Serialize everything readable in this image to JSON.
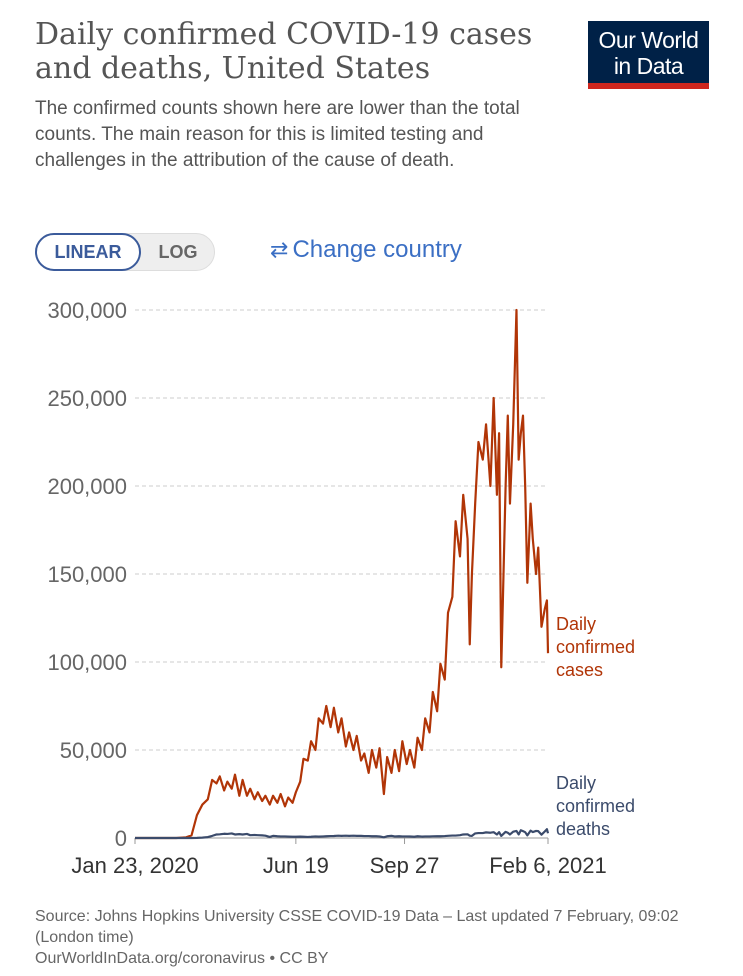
{
  "header": {
    "title": "Daily confirmed COVID-19 cases and deaths, United States",
    "subtitle": "The confirmed counts shown here are lower than the total counts. The main reason for this is limited testing and challenges in the attribution of the cause of death.",
    "logo": "Our World in Data"
  },
  "controls": {
    "linear": "LINEAR",
    "log": "LOG",
    "change_country": "Change country"
  },
  "chart_data": {
    "type": "line",
    "x": [
      "2020-01-23",
      "2020-02-15",
      "2020-03-01",
      "2020-03-10",
      "2020-03-15",
      "2020-03-20",
      "2020-03-25",
      "2020-03-30",
      "2020-04-03",
      "2020-04-07",
      "2020-04-10",
      "2020-04-14",
      "2020-04-17",
      "2020-04-21",
      "2020-04-24",
      "2020-04-28",
      "2020-05-01",
      "2020-05-05",
      "2020-05-08",
      "2020-05-12",
      "2020-05-15",
      "2020-05-19",
      "2020-05-22",
      "2020-05-26",
      "2020-05-29",
      "2020-06-02",
      "2020-06-05",
      "2020-06-09",
      "2020-06-12",
      "2020-06-16",
      "2020-06-19",
      "2020-06-23",
      "2020-06-26",
      "2020-06-30",
      "2020-07-03",
      "2020-07-07",
      "2020-07-10",
      "2020-07-14",
      "2020-07-17",
      "2020-07-21",
      "2020-07-24",
      "2020-07-28",
      "2020-07-31",
      "2020-08-04",
      "2020-08-07",
      "2020-08-11",
      "2020-08-14",
      "2020-08-18",
      "2020-08-21",
      "2020-08-25",
      "2020-08-28",
      "2020-09-01",
      "2020-09-04",
      "2020-09-08",
      "2020-09-11",
      "2020-09-15",
      "2020-09-18",
      "2020-09-22",
      "2020-09-25",
      "2020-09-29",
      "2020-10-02",
      "2020-10-06",
      "2020-10-09",
      "2020-10-13",
      "2020-10-16",
      "2020-10-20",
      "2020-10-23",
      "2020-10-27",
      "2020-10-30",
      "2020-11-03",
      "2020-11-06",
      "2020-11-10",
      "2020-11-13",
      "2020-11-17",
      "2020-11-20",
      "2020-11-24",
      "2020-11-26",
      "2020-11-28",
      "2020-12-01",
      "2020-12-04",
      "2020-12-08",
      "2020-12-11",
      "2020-12-15",
      "2020-12-18",
      "2020-12-21",
      "2020-12-23",
      "2020-12-25",
      "2020-12-29",
      "2020-12-31",
      "2021-01-02",
      "2021-01-05",
      "2021-01-08",
      "2021-01-10",
      "2021-01-12",
      "2021-01-14",
      "2021-01-16",
      "2021-01-18",
      "2021-01-21",
      "2021-01-23",
      "2021-01-26",
      "2021-01-28",
      "2021-01-31",
      "2021-02-03",
      "2021-02-05",
      "2021-02-06"
    ],
    "series": [
      {
        "name": "Daily confirmed cases",
        "color": "#b13507",
        "values": [
          0,
          0,
          10,
          400,
          1500,
          13000,
          19000,
          22000,
          33000,
          31000,
          35000,
          27000,
          32000,
          28000,
          36000,
          24000,
          33000,
          24000,
          28000,
          22000,
          26000,
          21000,
          24000,
          19000,
          24000,
          20000,
          25000,
          18000,
          23000,
          20000,
          26000,
          32000,
          45000,
          44000,
          55000,
          50000,
          68000,
          65000,
          75000,
          63000,
          74000,
          60000,
          68000,
          52000,
          60000,
          50000,
          58000,
          44000,
          48000,
          37000,
          50000,
          40000,
          51000,
          25000,
          46000,
          37000,
          50000,
          38000,
          55000,
          42000,
          50000,
          40000,
          57000,
          50000,
          68000,
          60000,
          83000,
          72000,
          99000,
          90000,
          128000,
          137000,
          180000,
          160000,
          195000,
          170000,
          110000,
          150000,
          190000,
          225000,
          215000,
          235000,
          200000,
          250000,
          195000,
          230000,
          97000,
          200000,
          240000,
          190000,
          235000,
          300000,
          215000,
          230000,
          240000,
          200000,
          145000,
          190000,
          170000,
          150000,
          165000,
          120000,
          130000,
          135000,
          105000
        ]
      },
      {
        "name": "Daily confirmed deaths",
        "color": "#3b4b6b",
        "values": [
          0,
          0,
          0,
          5,
          10,
          60,
          220,
          500,
          1200,
          2000,
          2100,
          2400,
          2300,
          2600,
          2000,
          2200,
          2000,
          2300,
          1600,
          1700,
          1600,
          1500,
          1300,
          600,
          1200,
          1000,
          900,
          900,
          800,
          700,
          700,
          800,
          700,
          600,
          700,
          900,
          800,
          900,
          1000,
          1100,
          1150,
          1300,
          1200,
          1300,
          1200,
          1300,
          1200,
          1200,
          1100,
          1100,
          1000,
          1000,
          900,
          400,
          1000,
          1200,
          900,
          1000,
          900,
          900,
          850,
          700,
          1000,
          800,
          900,
          900,
          950,
          1000,
          1000,
          1100,
          1250,
          1400,
          1400,
          1600,
          2000,
          2100,
          1300,
          1200,
          2600,
          2800,
          2800,
          3200,
          3000,
          3300,
          2000,
          3300,
          1200,
          3500,
          3000,
          2000,
          3600,
          4000,
          2000,
          4400,
          3900,
          3300,
          1500,
          4200,
          3400,
          4000,
          3900,
          1900,
          3700,
          5000,
          2700
        ]
      }
    ],
    "xlim": [
      "2020-01-23",
      "2021-02-06"
    ],
    "xticks": [
      {
        "value": "2020-01-23",
        "label": "Jan 23, 2020"
      },
      {
        "value": "2020-06-19",
        "label": "Jun 19"
      },
      {
        "value": "2020-09-27",
        "label": "Sep 27"
      },
      {
        "value": "2021-02-06",
        "label": "Feb 6, 2021"
      }
    ],
    "ylim": [
      0,
      300000
    ],
    "yticks": [
      0,
      {
        "value": 50000,
        "label": "50,000"
      },
      {
        "value": 100000,
        "label": "100,000"
      },
      {
        "value": 150000,
        "label": "150,000"
      },
      {
        "value": 200000,
        "label": "200,000"
      },
      {
        "value": 250000,
        "label": "250,000"
      },
      {
        "value": 300000,
        "label": "300,000"
      }
    ],
    "grid": true
  },
  "footer": {
    "source": "Source: Johns Hopkins University CSSE COVID-19 Data – Last updated 7 February, 09:02 (London time)",
    "license": "OurWorldInData.org/coronavirus • CC BY"
  }
}
